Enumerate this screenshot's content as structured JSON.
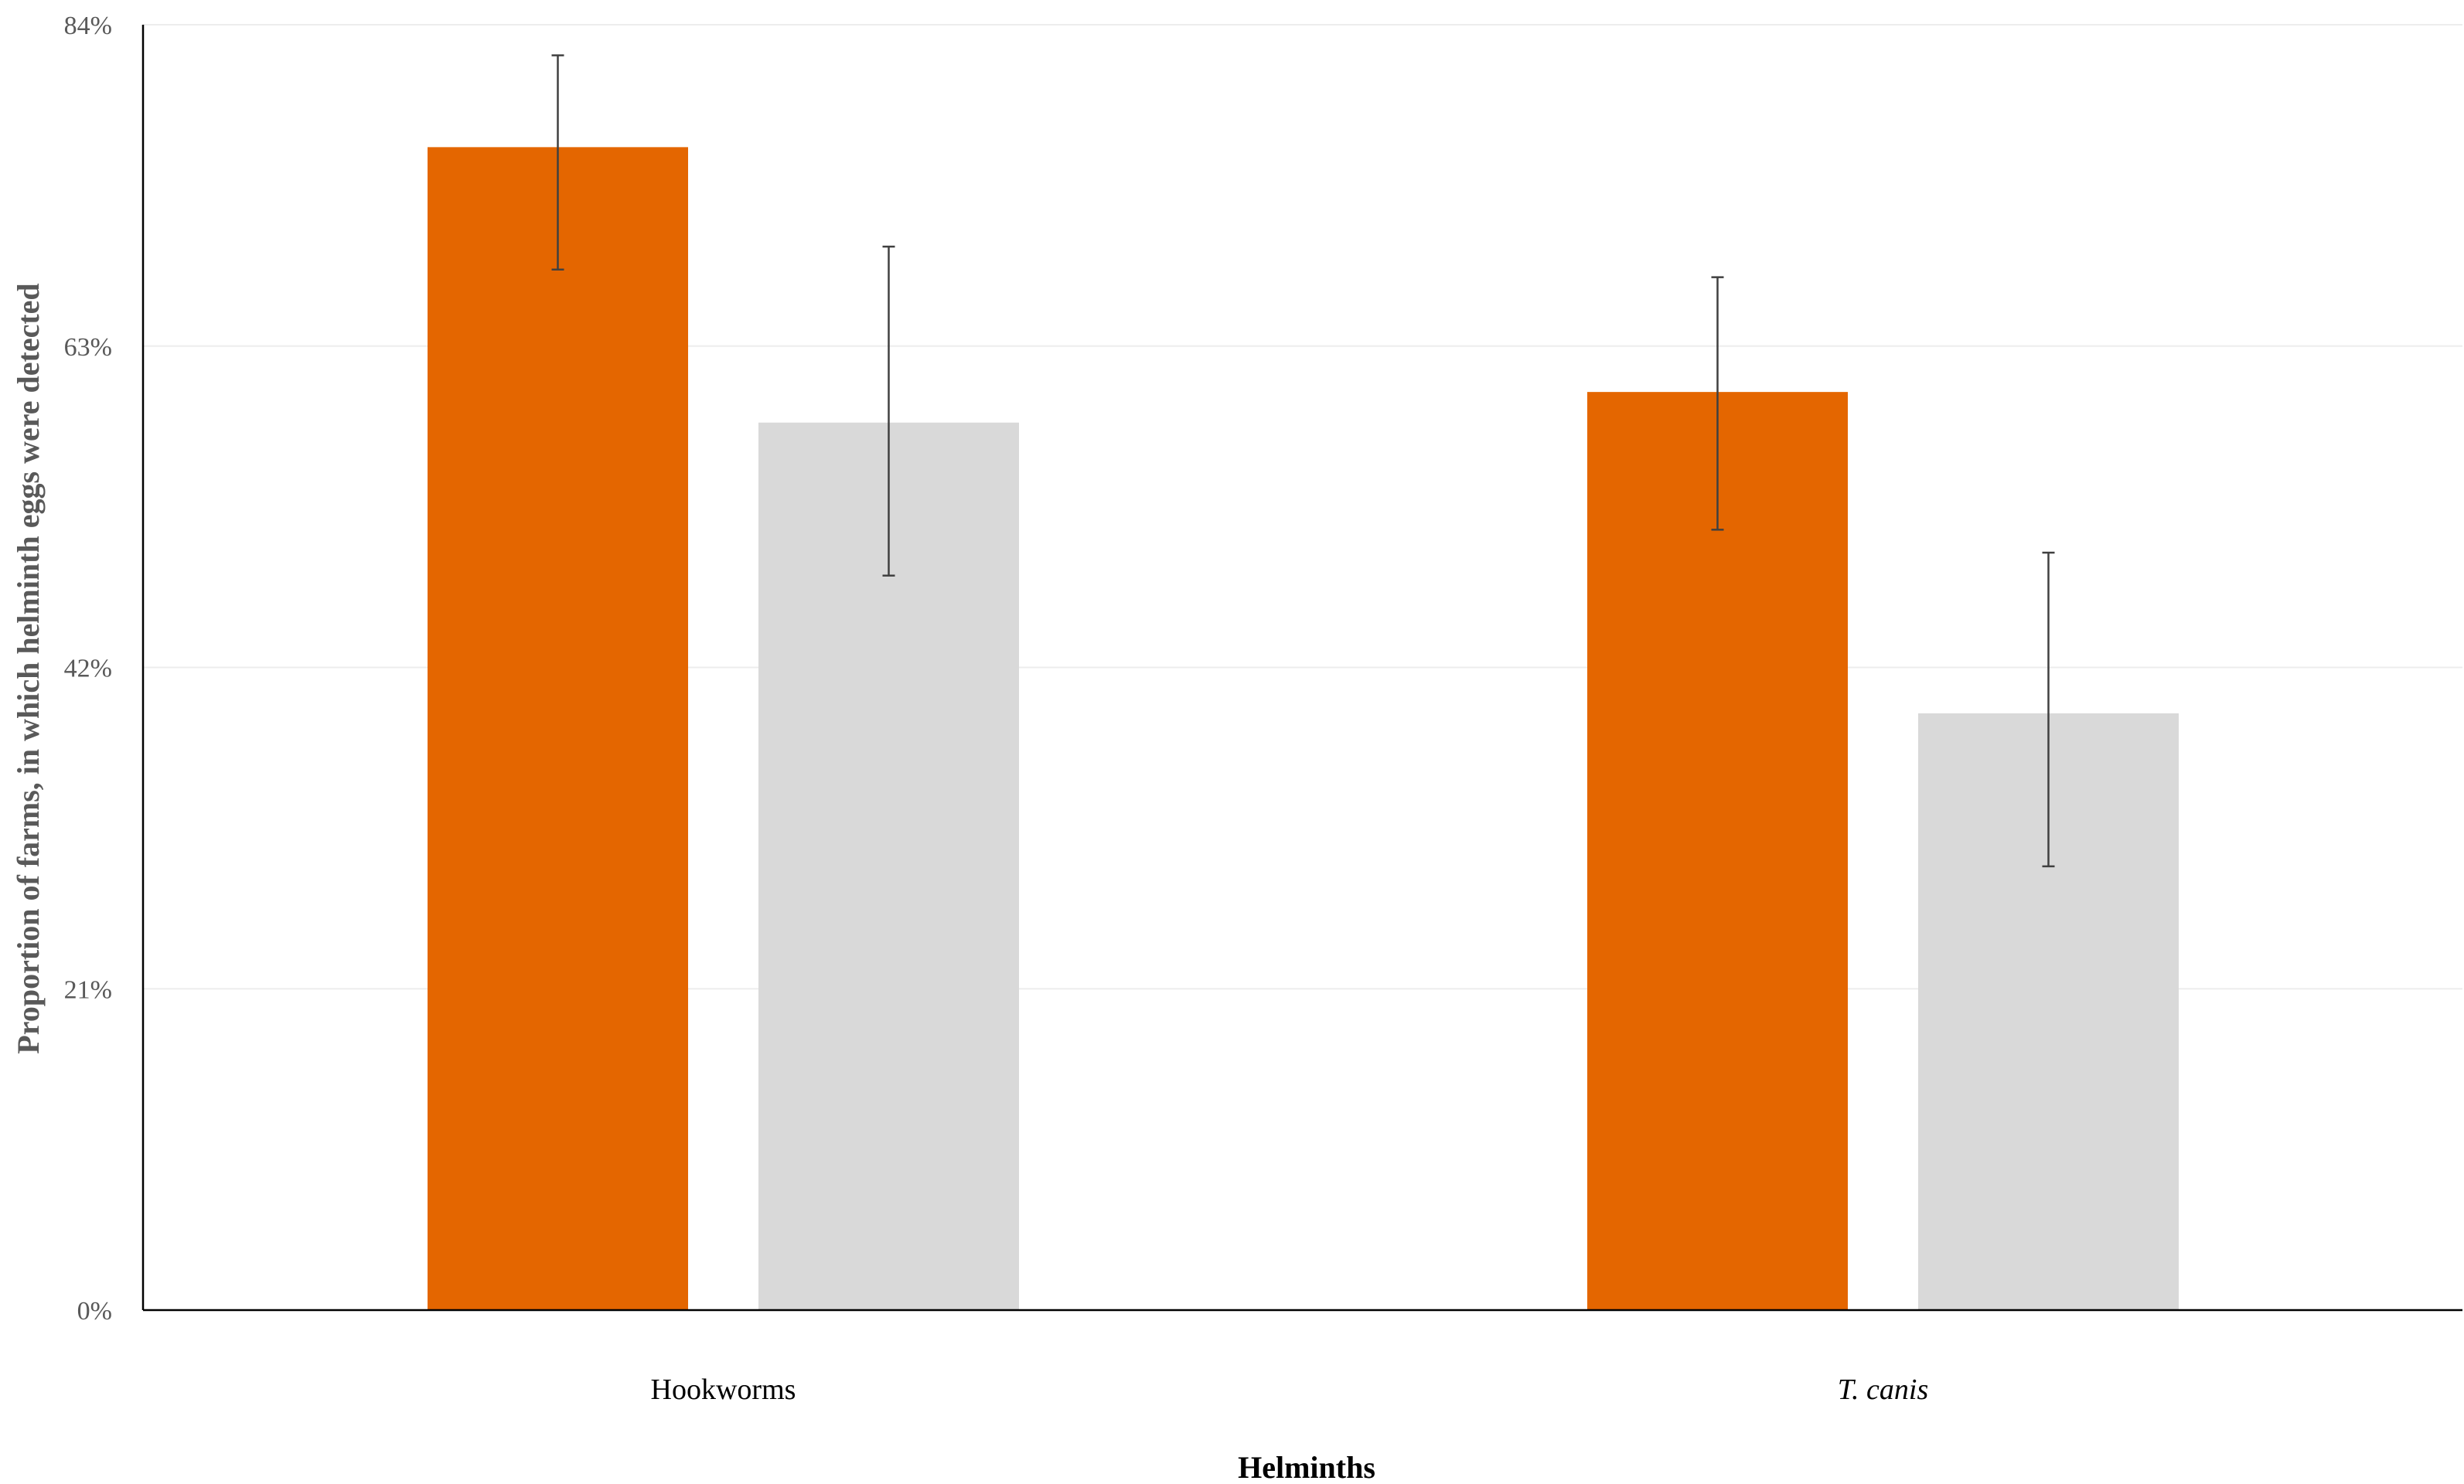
{
  "chart_data": {
    "type": "bar",
    "title": "",
    "xlabel": "Helminths",
    "ylabel": "Proportion of farms, in which helminth eggs were detected",
    "categories": [
      "Hookworms",
      "T. canis"
    ],
    "category_styles": [
      "normal",
      "italic"
    ],
    "ylim": [
      0,
      84
    ],
    "yticks": [
      0,
      21,
      42,
      63,
      84
    ],
    "ytick_labels": [
      "0%",
      "21%",
      "42%",
      "63%",
      "84%"
    ],
    "grid": true,
    "legend": "none",
    "series": [
      {
        "color": "#E46600",
        "values": [
          76,
          60
        ],
        "err_low": [
          68,
          51
        ],
        "err_high": [
          82,
          67.5
        ]
      },
      {
        "color": "#D9D9D9",
        "values": [
          58,
          39
        ],
        "err_low": [
          48,
          29
        ],
        "err_high": [
          69.5,
          49.5
        ]
      }
    ]
  },
  "colors": {
    "axis": "#000000",
    "grid": "#EDEDED",
    "error_bar": "#404040"
  }
}
